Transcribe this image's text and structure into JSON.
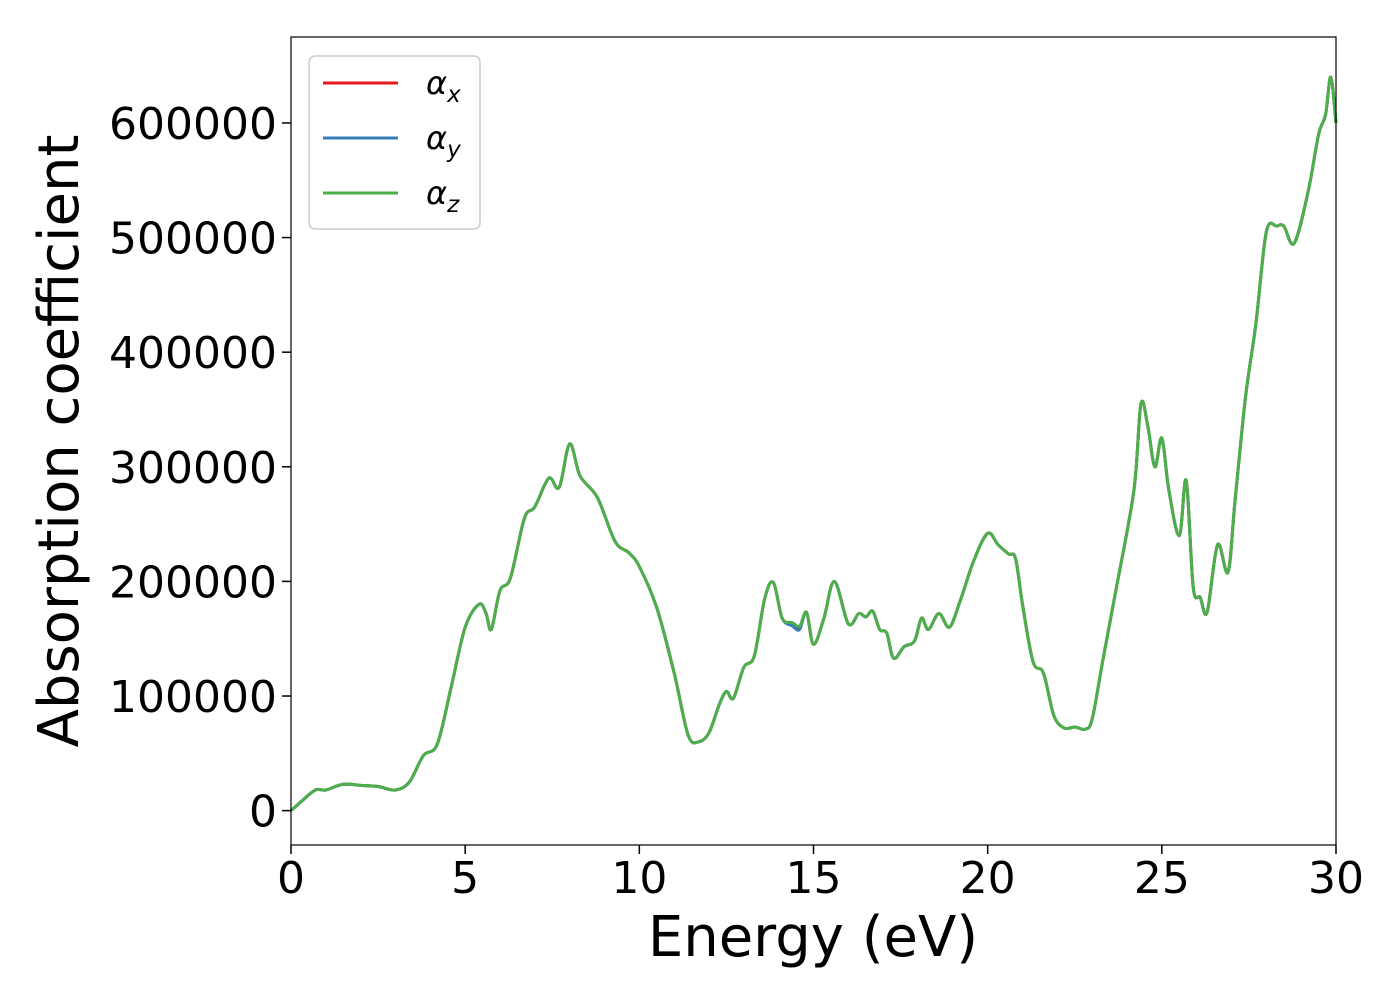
{
  "chart_data": {
    "type": "line",
    "title": "",
    "xlabel": "Energy (eV)",
    "ylabel": "Absorption coefficient",
    "xlim": [
      0,
      30
    ],
    "ylim": [
      -30000,
      675000
    ],
    "xticks": [
      0,
      5,
      10,
      15,
      20,
      25,
      30
    ],
    "xtick_labels": [
      "0",
      "5",
      "10",
      "15",
      "20",
      "25",
      "30"
    ],
    "yticks": [
      0,
      100000,
      200000,
      300000,
      400000,
      500000,
      600000
    ],
    "ytick_labels": [
      "0",
      "100000",
      "200000",
      "300000",
      "400000",
      "500000",
      "600000"
    ],
    "grid": false,
    "legend_position": "top-left",
    "x": [
      0,
      0.3,
      0.7,
      1.0,
      1.5,
      2.0,
      2.5,
      3.0,
      3.4,
      3.8,
      4.2,
      4.6,
      5.0,
      5.4,
      5.6,
      5.75,
      6.0,
      6.3,
      6.7,
      7.0,
      7.4,
      7.7,
      8.0,
      8.3,
      8.8,
      9.3,
      9.7,
      10.0,
      10.5,
      11.0,
      11.4,
      11.7,
      12.0,
      12.3,
      12.5,
      12.7,
      13.0,
      13.3,
      13.6,
      13.85,
      14.1,
      14.4,
      14.6,
      14.8,
      15.0,
      15.3,
      15.6,
      16.0,
      16.3,
      16.5,
      16.7,
      16.9,
      17.1,
      17.3,
      17.6,
      17.9,
      18.1,
      18.3,
      18.6,
      18.9,
      19.2,
      19.6,
      20.0,
      20.3,
      20.6,
      20.8,
      21.0,
      21.3,
      21.6,
      21.9,
      22.2,
      22.5,
      22.8,
      23.0,
      23.3,
      23.7,
      24.2,
      24.4,
      24.6,
      24.8,
      25.0,
      25.2,
      25.5,
      25.7,
      25.9,
      26.1,
      26.3,
      26.6,
      26.9,
      27.1,
      27.4,
      27.7,
      28.0,
      28.3,
      28.5,
      28.8,
      29.2,
      29.5,
      29.7,
      29.85,
      30.0
    ],
    "series": [
      {
        "name": "α_x",
        "color": "#e41a1c",
        "values": [
          0,
          8000,
          18000,
          18000,
          23000,
          22000,
          21000,
          18000,
          25000,
          48000,
          58000,
          108000,
          160000,
          180000,
          172000,
          158000,
          192000,
          203000,
          255000,
          265000,
          290000,
          282000,
          320000,
          292000,
          273000,
          235000,
          225000,
          213000,
          177000,
          120000,
          66000,
          60000,
          68000,
          93000,
          104000,
          98000,
          125000,
          135000,
          185000,
          199000,
          168000,
          163000,
          160000,
          173000,
          145000,
          168000,
          200000,
          163000,
          172000,
          169000,
          174000,
          158000,
          155000,
          133000,
          143000,
          148000,
          168000,
          158000,
          172000,
          160000,
          182000,
          218000,
          242000,
          232000,
          224000,
          220000,
          180000,
          130000,
          120000,
          83000,
          72000,
          73000,
          71000,
          80000,
          130000,
          195000,
          280000,
          355000,
          335000,
          300000,
          325000,
          280000,
          240000,
          288000,
          195000,
          186000,
          173000,
          232000,
          208000,
          270000,
          360000,
          425000,
          505000,
          510000,
          510000,
          495000,
          540000,
          590000,
          607000,
          640000,
          600000
        ]
      },
      {
        "name": "α_y",
        "color": "#377eb8",
        "values": [
          0,
          8000,
          18000,
          18000,
          23000,
          22000,
          21000,
          18000,
          25000,
          48000,
          58000,
          108000,
          160000,
          180000,
          172000,
          158000,
          192000,
          203000,
          255000,
          265000,
          290000,
          282000,
          320000,
          292000,
          273000,
          235000,
          225000,
          213000,
          177000,
          120000,
          66000,
          60000,
          68000,
          93000,
          104000,
          98000,
          125000,
          135000,
          185000,
          199000,
          168000,
          161000,
          158000,
          173000,
          145000,
          168000,
          200000,
          163000,
          172000,
          169000,
          174000,
          158000,
          155000,
          133000,
          143000,
          148000,
          168000,
          158000,
          172000,
          160000,
          182000,
          218000,
          242000,
          232000,
          224000,
          220000,
          180000,
          130000,
          120000,
          83000,
          72000,
          73000,
          71000,
          80000,
          130000,
          195000,
          280000,
          355000,
          335000,
          300000,
          325000,
          280000,
          240000,
          288000,
          195000,
          186000,
          173000,
          232000,
          208000,
          270000,
          360000,
          425000,
          505000,
          510000,
          510000,
          495000,
          540000,
          590000,
          607000,
          640000,
          600000
        ]
      },
      {
        "name": "α_z",
        "color": "#4daf4a",
        "values": [
          0,
          8000,
          18000,
          18000,
          23000,
          22000,
          21000,
          18000,
          25000,
          48000,
          58000,
          108000,
          160000,
          180000,
          172000,
          158000,
          192000,
          203000,
          255000,
          265000,
          290000,
          282000,
          320000,
          292000,
          273000,
          235000,
          225000,
          213000,
          177000,
          120000,
          66000,
          60000,
          68000,
          93000,
          104000,
          98000,
          125000,
          135000,
          185000,
          199000,
          168000,
          164000,
          161000,
          173000,
          145000,
          168000,
          200000,
          163000,
          172000,
          169000,
          174000,
          158000,
          155000,
          133000,
          143000,
          148000,
          168000,
          158000,
          172000,
          160000,
          182000,
          218000,
          242000,
          232000,
          224000,
          220000,
          180000,
          130000,
          120000,
          83000,
          72000,
          73000,
          71000,
          80000,
          130000,
          195000,
          280000,
          355000,
          335000,
          300000,
          325000,
          280000,
          240000,
          288000,
          195000,
          186000,
          173000,
          232000,
          208000,
          270000,
          360000,
          425000,
          505000,
          510000,
          510000,
          495000,
          540000,
          590000,
          607000,
          640000,
          600000
        ]
      }
    ],
    "legend_entries": [
      {
        "symbol": "α",
        "sub": "x",
        "color": "#e41a1c"
      },
      {
        "symbol": "α",
        "sub": "y",
        "color": "#377eb8"
      },
      {
        "symbol": "α",
        "sub": "z",
        "color": "#4daf4a"
      }
    ]
  }
}
